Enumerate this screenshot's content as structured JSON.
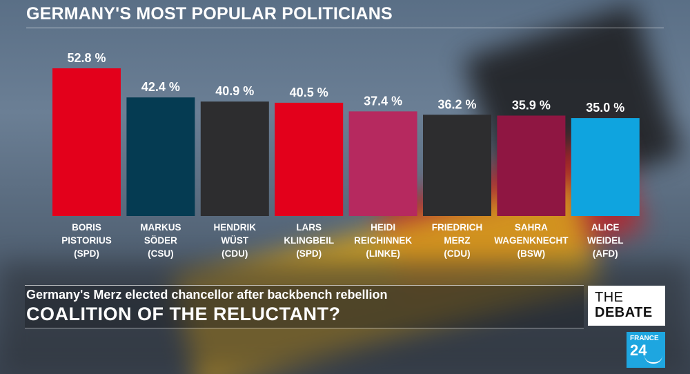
{
  "title": "GERMANY'S MOST POPULAR POLITICIANS",
  "lower_third": {
    "subhead": "Germany's Merz elected chancellor after backbench rebellion",
    "headline": "COALITION OF THE RELUCTANT?"
  },
  "show_logo": {
    "line1": "THE",
    "line2": "DEBATE"
  },
  "channel_logo": {
    "line1": "FRANCE",
    "line2": "24"
  },
  "chart_data": {
    "type": "bar",
    "title": "GERMANY'S MOST POPULAR POLITICIANS",
    "xlabel": "",
    "ylabel": "",
    "ylim": [
      0,
      52.8
    ],
    "grid": false,
    "categories": [
      {
        "lines": [
          "BORIS",
          "PISTORIUS",
          "(SPD)"
        ]
      },
      {
        "lines": [
          "MARKUS",
          "SÖDER",
          "(CSU)"
        ]
      },
      {
        "lines": [
          "HENDRIK",
          "WÜST",
          "(CDU)"
        ]
      },
      {
        "lines": [
          "LARS",
          "KLINGBEIL",
          "(SPD)"
        ]
      },
      {
        "lines": [
          "HEIDI",
          "REICHINNEK",
          "(LINKE)"
        ]
      },
      {
        "lines": [
          "FRIEDRICH",
          "MERZ",
          "(CDU)"
        ]
      },
      {
        "lines": [
          "SAHRA",
          "WAGENKNECHT",
          "(BSW)"
        ]
      },
      {
        "lines": [
          "ALICE",
          "WEIDEL",
          "(AFD)"
        ]
      }
    ],
    "values": [
      52.8,
      42.4,
      40.9,
      40.5,
      37.4,
      36.2,
      35.9,
      35.0
    ],
    "value_labels": [
      "52.8 %",
      "42.4 %",
      "40.9 %",
      "40.5 %",
      "37.4 %",
      "36.2 %",
      "35.9 %",
      "35.0 %"
    ],
    "colors": [
      "#e3001b",
      "#053b52",
      "#2d2d2f",
      "#e3001b",
      "#b6295f",
      "#2d2d2f",
      "#8f1642",
      "#0fa4df"
    ]
  }
}
